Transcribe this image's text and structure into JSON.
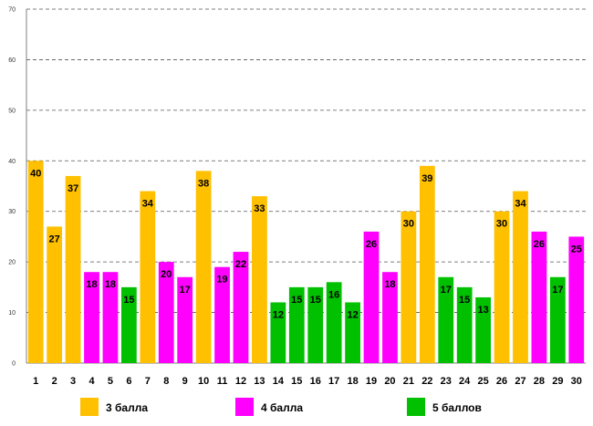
{
  "chart_data": {
    "type": "bar",
    "title": "",
    "xlabel": "",
    "ylabel": "",
    "ylim": [
      0,
      70
    ],
    "yticks": [
      0,
      10,
      20,
      30,
      40,
      50,
      60,
      70
    ],
    "grid": true,
    "legend_position": "bottom",
    "categories": [
      "1",
      "2",
      "3",
      "4",
      "5",
      "6",
      "7",
      "8",
      "9",
      "10",
      "11",
      "12",
      "13",
      "14",
      "15",
      "16",
      "17",
      "18",
      "19",
      "20",
      "21",
      "22",
      "23",
      "24",
      "25",
      "26",
      "27",
      "28",
      "29",
      "30"
    ],
    "values": [
      40,
      27,
      37,
      18,
      18,
      15,
      34,
      20,
      17,
      38,
      19,
      22,
      33,
      12,
      15,
      15,
      16,
      12,
      26,
      18,
      30,
      39,
      17,
      15,
      13,
      30,
      34,
      26,
      17,
      25
    ],
    "groups": [
      "3",
      "3",
      "3",
      "4",
      "4",
      "5",
      "3",
      "4",
      "4",
      "3",
      "4",
      "4",
      "3",
      "5",
      "5",
      "5",
      "5",
      "5",
      "4",
      "4",
      "3",
      "3",
      "5",
      "5",
      "5",
      "3",
      "3",
      "4",
      "5",
      "4"
    ],
    "series": [
      {
        "key": "3",
        "name": "3 балла",
        "color": "#FFC000"
      },
      {
        "key": "4",
        "name": "4 балла",
        "color": "#FF00FF"
      },
      {
        "key": "5",
        "name": "5 баллов",
        "color": "#00C000"
      }
    ]
  }
}
